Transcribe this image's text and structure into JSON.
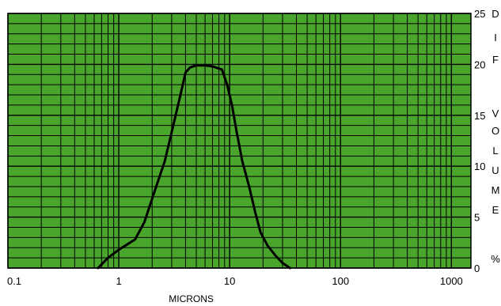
{
  "chart_data": {
    "type": "line",
    "title": "",
    "xlabel": "MICRONS",
    "ylabel_letters": [
      "D",
      "I",
      "F",
      "V",
      "O",
      "L",
      "U",
      "M",
      "E",
      "%"
    ],
    "x_scale": "log",
    "xlim": [
      0.1,
      1500
    ],
    "ylim": [
      0,
      25
    ],
    "x_ticks": [
      {
        "value": 0.1,
        "label": "0.1"
      },
      {
        "value": 1,
        "label": "1"
      },
      {
        "value": 10,
        "label": "10"
      },
      {
        "value": 100,
        "label": "100"
      },
      {
        "value": 1000,
        "label": "1000"
      }
    ],
    "y_ticks": [
      {
        "value": 0,
        "label": "0"
      },
      {
        "value": 5,
        "label": "5"
      },
      {
        "value": 10,
        "label": "10"
      },
      {
        "value": 15,
        "label": "15"
      },
      {
        "value": 20,
        "label": "20"
      },
      {
        "value": 25,
        "label": "25"
      }
    ],
    "grid": true,
    "background_color": "#4aa52c",
    "grid_color": "#000000",
    "line_color": "#000000",
    "series": [
      {
        "x": [
          0.65,
          0.8,
          1.0,
          1.4,
          1.7,
          2.1,
          2.6,
          3.1,
          3.6,
          4.0,
          4.4,
          5.0,
          6.0,
          7.0,
          8.5,
          9.5,
          10.5,
          11.5,
          13,
          15,
          17,
          19,
          22,
          26,
          30,
          35
        ],
        "y": [
          0,
          1.0,
          1.8,
          2.8,
          4.5,
          7.5,
          10.5,
          14.0,
          17.0,
          19.2,
          19.7,
          19.9,
          19.9,
          19.8,
          19.5,
          18.0,
          16.0,
          13.5,
          10.5,
          8.0,
          5.5,
          3.5,
          2.2,
          1.2,
          0.5,
          0
        ]
      }
    ]
  }
}
